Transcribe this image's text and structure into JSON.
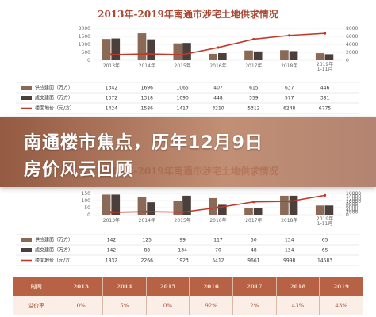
{
  "banner": {
    "line1": "南通楼市焦点，历年12月9日",
    "line2": "房价风云回顾"
  },
  "colors": {
    "supply": "#8a6a57",
    "deal": "#4a3f3b",
    "price_line": "#c0392b",
    "banner": "#8c4e34",
    "table_header": "#b76145"
  },
  "chart_data": [
    {
      "type": "bar",
      "title": "2013年-2019年南通市涉宅土地供求情况",
      "categories": [
        "2013年",
        "2014年",
        "2015年",
        "2016年",
        "2017年",
        "2018年",
        "2019年1-11月"
      ],
      "y_ticks_left": [
        "2000",
        "1500",
        "1000",
        "500",
        "0"
      ],
      "y_ticks_right": [
        "8000",
        "6000",
        "4000",
        "2000",
        "0"
      ],
      "ylim": [
        0,
        2000
      ],
      "y2lim": [
        0,
        8000
      ],
      "series": [
        {
          "name": "供应建面（万方）",
          "kind": "bar",
          "values": [
            1342,
            1696,
            1065,
            407,
            615,
            637,
            446
          ]
        },
        {
          "name": "成交建面（万方）",
          "kind": "bar",
          "values": [
            1372,
            1318,
            1090,
            448,
            559,
            577,
            381
          ]
        },
        {
          "name": "楼面地价（元/方）",
          "kind": "line",
          "values": [
            1424,
            1586,
            1417,
            3210,
            5312,
            6248,
            6775
          ]
        }
      ]
    },
    {
      "type": "bar",
      "title": "2013年-2019年南通市涉宅土地供求情况",
      "categories": [
        "2013年",
        "2014年",
        "2015年",
        "2016年",
        "2017年",
        "2018年",
        "2019年1-11月"
      ],
      "y_ticks_left": [
        "150",
        "100",
        "50",
        "0"
      ],
      "y_ticks_right": [
        "16000",
        "14000",
        "12000",
        "10000",
        "8000",
        "6000",
        "4000",
        "2000",
        "0"
      ],
      "ylim": [
        0,
        150
      ],
      "y2lim": [
        0,
        16000
      ],
      "series": [
        {
          "name": "供应建面（万方）",
          "kind": "bar",
          "values": [
            142,
            125,
            99,
            117,
            50,
            134,
            65
          ]
        },
        {
          "name": "成交建面（万方）",
          "kind": "bar",
          "values": [
            142,
            88,
            134,
            70,
            48,
            134,
            65
          ]
        },
        {
          "name": "楼面地价（元/方）",
          "kind": "line",
          "values": [
            1832,
            2266,
            1923,
            5412,
            9661,
            9998,
            14583
          ]
        }
      ]
    },
    {
      "type": "table",
      "header_label": "时间",
      "row_label": "溢价率",
      "columns": [
        "2013",
        "2014",
        "2015",
        "2016",
        "2017",
        "2018",
        "2019"
      ],
      "values": [
        "0%",
        "5%",
        "0%",
        "92%",
        "2%",
        "43%",
        "43%"
      ]
    }
  ]
}
